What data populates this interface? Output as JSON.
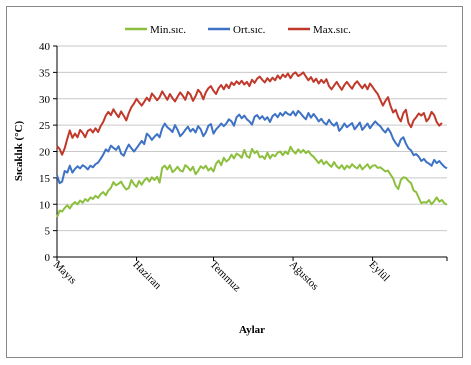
{
  "chart_data": {
    "type": "line",
    "title": "",
    "xlabel": "Aylar",
    "ylabel": "Sıcaklık (°C)",
    "ylim": [
      0,
      40
    ],
    "yticks": [
      0,
      5,
      10,
      15,
      20,
      25,
      30,
      35,
      40
    ],
    "grid": true,
    "legend_position": "top",
    "x_tick_labels": [
      "Mayıs",
      "Haziran",
      "Temmuz",
      "Ağustos",
      "Eylül"
    ],
    "x_tick_days": [
      1,
      32,
      62,
      93,
      124
    ],
    "x_range_days": [
      1,
      153
    ],
    "series": [
      {
        "name": "Min.sıc.",
        "color": "#8DBF3E",
        "values": [
          7.5,
          8.8,
          8.6,
          9.3,
          9.8,
          9.2,
          10.0,
          10.4,
          10.0,
          10.7,
          10.3,
          11.0,
          10.6,
          11.3,
          11.0,
          11.6,
          11.2,
          11.9,
          12.3,
          11.7,
          12.6,
          13.1,
          14.2,
          13.6,
          13.9,
          14.3,
          13.4,
          12.8,
          13.1,
          14.6,
          13.8,
          13.3,
          14.4,
          13.7,
          14.5,
          15.0,
          14.3,
          15.1,
          14.6,
          15.2,
          14.1,
          16.9,
          17.3,
          16.6,
          17.4,
          16.1,
          16.5,
          17.1,
          16.4,
          16.2,
          17.4,
          17.0,
          16.4,
          17.1,
          15.7,
          16.3,
          17.2,
          16.8,
          17.3,
          16.4,
          16.9,
          16.2,
          17.7,
          18.3,
          17.4,
          18.8,
          18.1,
          18.5,
          19.4,
          18.7,
          19.6,
          19.3,
          18.8,
          20.3,
          19.1,
          18.8,
          20.5,
          19.7,
          20.1,
          18.9,
          19.1,
          18.6,
          19.8,
          18.7,
          19.4,
          19.1,
          19.8,
          20.0,
          19.3,
          20.0,
          19.5,
          20.9,
          20.1,
          19.6,
          20.4,
          19.8,
          20.3,
          19.7,
          20.1,
          19.4,
          19.0,
          18.4,
          17.8,
          18.4,
          17.6,
          18.1,
          17.5,
          17.1,
          18.0,
          17.2,
          16.8,
          17.4,
          16.6,
          17.3,
          16.9,
          17.6,
          17.1,
          16.8,
          17.5,
          16.6,
          17.1,
          17.6,
          16.8,
          17.3,
          17.4,
          16.9,
          17.0,
          16.6,
          16.2,
          16.4,
          15.6,
          14.9,
          13.5,
          12.9,
          14.6,
          15.1,
          15.0,
          14.4,
          14.0,
          12.6,
          12.3,
          11.2,
          10.2,
          10.4,
          10.3,
          10.8,
          10.0,
          10.6,
          11.3,
          10.5,
          10.8,
          10.2,
          9.9
        ]
      },
      {
        "name": "Ort.sıc.",
        "color": "#3D72C4",
        "values": [
          15.5,
          14.0,
          14.3,
          16.3,
          16.0,
          17.3,
          16.0,
          16.7,
          17.2,
          16.8,
          17.4,
          17.1,
          16.6,
          17.3,
          17.0,
          17.6,
          17.9,
          18.6,
          19.4,
          20.4,
          20.0,
          21.1,
          20.7,
          20.3,
          21.0,
          19.6,
          19.2,
          20.4,
          21.3,
          20.6,
          20.0,
          20.6,
          21.3,
          22.0,
          21.4,
          23.4,
          22.9,
          22.2,
          22.8,
          23.3,
          22.7,
          24.4,
          25.3,
          24.6,
          24.2,
          23.7,
          25.0,
          24.1,
          22.9,
          23.4,
          24.1,
          24.7,
          23.8,
          24.3,
          23.6,
          24.8,
          24.2,
          22.9,
          23.6,
          24.9,
          25.2,
          23.4,
          24.2,
          24.7,
          25.3,
          24.8,
          25.3,
          26.1,
          25.7,
          24.9,
          26.5,
          27.0,
          26.3,
          26.8,
          26.1,
          25.7,
          25.1,
          26.6,
          26.9,
          26.2,
          26.7,
          26.0,
          26.5,
          25.6,
          26.7,
          27.1,
          26.5,
          27.3,
          26.8,
          27.5,
          27.1,
          26.9,
          27.6,
          26.8,
          27.7,
          27.2,
          26.6,
          26.1,
          27.3,
          26.4,
          27.1,
          26.5,
          25.7,
          26.2,
          25.5,
          25.1,
          26.0,
          25.3,
          24.9,
          25.5,
          23.9,
          24.5,
          25.3,
          24.6,
          25.0,
          25.4,
          24.2,
          24.8,
          25.5,
          24.1,
          24.7,
          25.3,
          24.4,
          25.1,
          25.7,
          25.2,
          24.8,
          24.1,
          23.6,
          24.4,
          23.6,
          22.4,
          21.6,
          21.0,
          22.3,
          22.7,
          21.5,
          20.6,
          20.2,
          19.3,
          19.5,
          19.0,
          18.2,
          18.6,
          18.0,
          17.7,
          17.3,
          18.4,
          17.8,
          18.2,
          17.6,
          17.1,
          16.8
        ]
      },
      {
        "name": "Max.sıc.",
        "color": "#C0392B",
        "values": [
          21.0,
          20.5,
          19.4,
          20.6,
          22.4,
          24.0,
          22.6,
          23.4,
          22.7,
          24.1,
          23.5,
          22.7,
          23.9,
          24.2,
          23.6,
          24.4,
          23.7,
          24.8,
          25.6,
          26.8,
          27.5,
          26.9,
          28.0,
          27.2,
          26.5,
          27.6,
          26.8,
          25.9,
          27.3,
          28.4,
          29.1,
          30.0,
          29.3,
          28.7,
          29.4,
          30.2,
          29.6,
          31.0,
          30.4,
          29.7,
          30.3,
          31.4,
          30.6,
          29.8,
          30.9,
          30.1,
          29.5,
          30.4,
          31.2,
          30.6,
          29.8,
          31.3,
          30.8,
          29.6,
          30.5,
          31.7,
          31.1,
          29.9,
          31.2,
          32.0,
          32.4,
          31.5,
          30.9,
          32.0,
          32.6,
          31.8,
          32.7,
          32.0,
          33.1,
          32.6,
          33.3,
          32.8,
          33.4,
          32.7,
          33.2,
          32.4,
          33.6,
          33.0,
          33.8,
          34.2,
          33.6,
          33.1,
          33.9,
          33.3,
          34.0,
          33.5,
          34.4,
          33.8,
          34.6,
          34.1,
          34.8,
          33.9,
          34.7,
          35.0,
          34.3,
          34.6,
          35.0,
          34.2,
          33.5,
          34.1,
          33.2,
          33.8,
          32.9,
          33.6,
          33.0,
          33.7,
          32.4,
          31.8,
          32.5,
          33.2,
          32.4,
          31.7,
          32.6,
          33.2,
          32.5,
          31.9,
          32.8,
          33.3,
          32.6,
          32.0,
          32.7,
          31.8,
          32.9,
          32.2,
          31.5,
          30.9,
          29.8,
          28.7,
          29.6,
          30.3,
          28.6,
          27.4,
          27.9,
          26.5,
          25.7,
          27.3,
          27.9,
          25.4,
          24.6,
          25.9,
          26.5,
          27.2,
          26.8,
          27.3,
          25.7,
          26.3,
          27.5,
          26.9,
          25.6,
          24.9,
          25.4
        ]
      }
    ]
  }
}
